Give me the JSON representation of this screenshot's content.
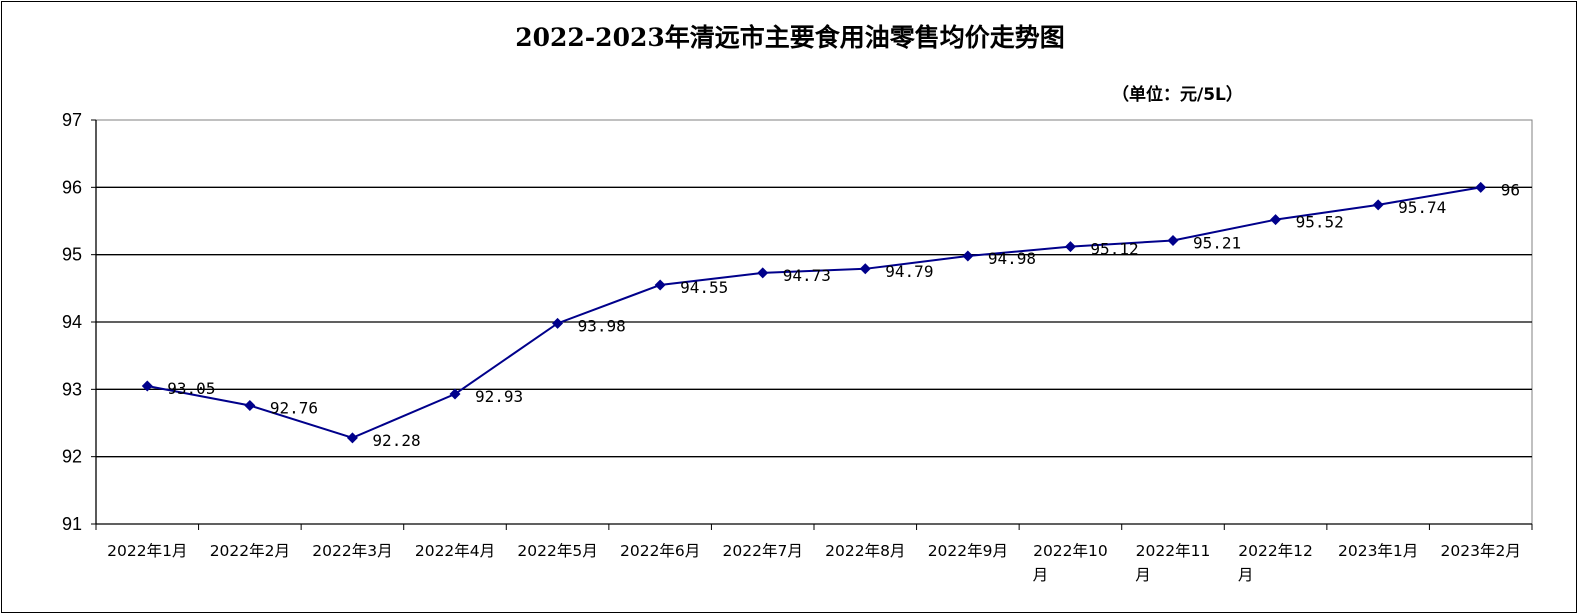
{
  "chart_data": {
    "type": "line",
    "title": "2022-2023年清远市主要食用油零售均价走势图",
    "unit_note": "（单位：元/5L）",
    "categories": [
      "2022年1月",
      "2022年2月",
      "2022年3月",
      "2022年4月",
      "2022年5月",
      "2022年6月",
      "2022年7月",
      "2022年8月",
      "2022年9月",
      "2022年10月",
      "2022年11月",
      "2022年12月",
      "2023年1月",
      "2023年2月"
    ],
    "values": [
      93.05,
      92.76,
      92.28,
      92.93,
      93.98,
      94.55,
      94.73,
      94.79,
      94.98,
      95.12,
      95.21,
      95.52,
      95.74,
      96
    ],
    "data_labels": [
      "93.05",
      "92.76",
      "92.28",
      "92.93",
      "93.98",
      "94.55",
      "94.73",
      "94.79",
      "94.98",
      "95.12",
      "95.21",
      "95.52",
      "95.74",
      "96"
    ],
    "yticks": [
      "91",
      "92",
      "93",
      "94",
      "95",
      "96",
      "97"
    ],
    "ylim": [
      91,
      97
    ],
    "grid": true,
    "legend": "none",
    "line_color": "#00008B"
  }
}
